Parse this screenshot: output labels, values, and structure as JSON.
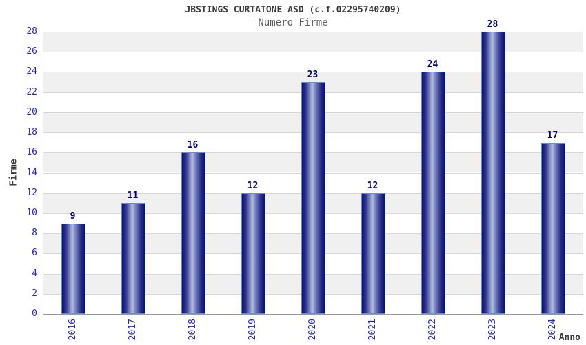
{
  "chart_data": {
    "type": "bar",
    "title": "JBSTINGS CURTATONE ASD (c.f.02295740209)",
    "subtitle": "Numero Firme",
    "xlabel": "Anno",
    "ylabel": "Firme",
    "categories": [
      "2016",
      "2017",
      "2018",
      "2019",
      "2020",
      "2021",
      "2022",
      "2023",
      "2024"
    ],
    "values": [
      9,
      11,
      16,
      12,
      23,
      12,
      24,
      28,
      17
    ],
    "ylim": [
      0,
      28
    ],
    "ytick_step": 2,
    "legend": "none",
    "grid": "horizontal gridlines with alternating background bands every 2 units",
    "colors": {
      "bar_dark": "#0f0f6e",
      "bar_highlight": "#b4bcdf",
      "bar_border": "#5c8fe0",
      "tick_label": "#2727cc",
      "value_label": "#00007d",
      "title_text": "#3c3c3c",
      "subtitle_text": "#5f5f5f",
      "band_gray": "#f0f0f0",
      "band_white": "#ffffff",
      "gridline": "#d6d6d6",
      "axis_line": "#9a9a9a"
    }
  }
}
